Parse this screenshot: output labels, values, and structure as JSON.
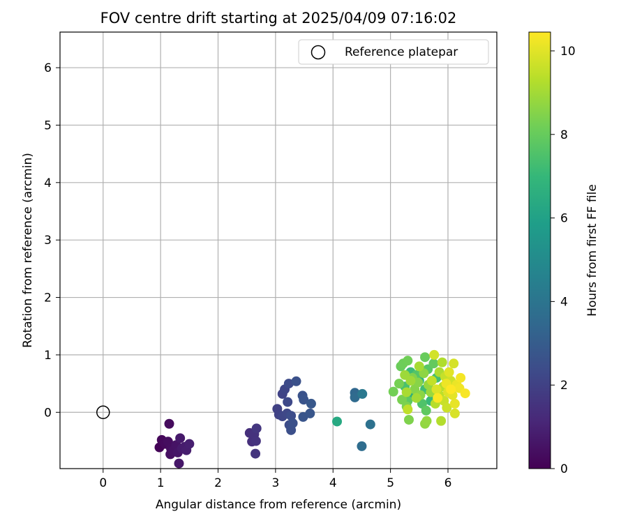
{
  "chart_data": {
    "type": "scatter",
    "title": "FOV centre drift starting at 2025/04/09 07:16:02",
    "xlabel": "Angular distance from reference (arcmin)",
    "ylabel": "Rotation from reference (arcmin)",
    "xlim": [
      -0.75,
      6.85
    ],
    "ylim": [
      -0.98,
      6.62
    ],
    "xticks": [
      0,
      1,
      2,
      3,
      4,
      5,
      6
    ],
    "yticks": [
      0,
      1,
      2,
      3,
      4,
      5,
      6
    ],
    "grid": true,
    "legend": {
      "placement": "top-right",
      "entries": [
        "Reference platepar"
      ]
    },
    "reference_point": {
      "label": "Reference platepar",
      "x": 0,
      "y": 0,
      "marker": "open-circle"
    },
    "colorbar": {
      "label": "Hours from first FF file",
      "range": [
        0,
        10.45
      ],
      "ticks": [
        0,
        2,
        4,
        6,
        8,
        10
      ],
      "colormap": "viridis"
    },
    "points": [
      {
        "x": 0.98,
        "y": -0.61,
        "c": 0.1
      },
      {
        "x": 1.02,
        "y": -0.48,
        "c": 0.2
      },
      {
        "x": 1.08,
        "y": -0.55,
        "c": 0.25
      },
      {
        "x": 1.15,
        "y": -0.2,
        "c": 0.3
      },
      {
        "x": 1.13,
        "y": -0.51,
        "c": 0.35
      },
      {
        "x": 1.18,
        "y": -0.63,
        "c": 0.4
      },
      {
        "x": 1.17,
        "y": -0.73,
        "c": 0.45
      },
      {
        "x": 1.22,
        "y": -0.67,
        "c": 0.5
      },
      {
        "x": 1.27,
        "y": -0.57,
        "c": 0.55
      },
      {
        "x": 1.3,
        "y": -0.7,
        "c": 0.6
      },
      {
        "x": 1.32,
        "y": -0.89,
        "c": 0.65
      },
      {
        "x": 1.34,
        "y": -0.45,
        "c": 0.7
      },
      {
        "x": 1.37,
        "y": -0.63,
        "c": 0.75
      },
      {
        "x": 1.42,
        "y": -0.6,
        "c": 0.8
      },
      {
        "x": 1.45,
        "y": -0.66,
        "c": 0.85
      },
      {
        "x": 1.5,
        "y": -0.55,
        "c": 0.9
      },
      {
        "x": 2.55,
        "y": -0.36,
        "c": 1.4
      },
      {
        "x": 2.59,
        "y": -0.51,
        "c": 1.45
      },
      {
        "x": 2.63,
        "y": -0.38,
        "c": 1.5
      },
      {
        "x": 2.66,
        "y": -0.5,
        "c": 1.55
      },
      {
        "x": 2.65,
        "y": -0.72,
        "c": 1.6
      },
      {
        "x": 2.67,
        "y": -0.28,
        "c": 1.65
      },
      {
        "x": 3.03,
        "y": 0.06,
        "c": 2.0
      },
      {
        "x": 3.06,
        "y": -0.04,
        "c": 2.05
      },
      {
        "x": 3.12,
        "y": 0.32,
        "c": 2.1
      },
      {
        "x": 3.16,
        "y": 0.4,
        "c": 2.15
      },
      {
        "x": 3.12,
        "y": -0.07,
        "c": 2.2
      },
      {
        "x": 3.2,
        "y": -0.02,
        "c": 2.25
      },
      {
        "x": 3.21,
        "y": 0.18,
        "c": 2.3
      },
      {
        "x": 3.23,
        "y": 0.5,
        "c": 2.35
      },
      {
        "x": 3.24,
        "y": -0.22,
        "c": 2.4
      },
      {
        "x": 3.27,
        "y": -0.06,
        "c": 2.45
      },
      {
        "x": 3.27,
        "y": -0.31,
        "c": 2.5
      },
      {
        "x": 3.3,
        "y": -0.19,
        "c": 2.55
      },
      {
        "x": 3.36,
        "y": 0.54,
        "c": 2.6
      },
      {
        "x": 3.47,
        "y": 0.29,
        "c": 2.65
      },
      {
        "x": 3.49,
        "y": 0.22,
        "c": 2.7
      },
      {
        "x": 3.48,
        "y": -0.08,
        "c": 2.75
      },
      {
        "x": 3.6,
        "y": -0.02,
        "c": 2.8
      },
      {
        "x": 3.62,
        "y": 0.15,
        "c": 2.85
      },
      {
        "x": 4.38,
        "y": 0.34,
        "c": 3.5
      },
      {
        "x": 4.38,
        "y": 0.26,
        "c": 3.6
      },
      {
        "x": 4.5,
        "y": -0.59,
        "c": 3.7
      },
      {
        "x": 4.51,
        "y": 0.32,
        "c": 4.2
      },
      {
        "x": 4.65,
        "y": -0.21,
        "c": 3.9
      },
      {
        "x": 4.07,
        "y": -0.16,
        "c": 6.3
      },
      {
        "x": 5.4,
        "y": 0.3,
        "c": 6.5
      },
      {
        "x": 5.5,
        "y": 0.55,
        "c": 6.8
      },
      {
        "x": 5.7,
        "y": 0.2,
        "c": 7.0
      },
      {
        "x": 5.35,
        "y": 0.7,
        "c": 7.1
      },
      {
        "x": 5.6,
        "y": 0.4,
        "c": 7.2
      },
      {
        "x": 5.8,
        "y": 0.6,
        "c": 7.3
      },
      {
        "x": 5.25,
        "y": 0.45,
        "c": 7.4
      },
      {
        "x": 5.55,
        "y": 0.15,
        "c": 7.5
      },
      {
        "x": 5.45,
        "y": 0.65,
        "c": 7.6
      },
      {
        "x": 5.65,
        "y": 0.75,
        "c": 7.7
      },
      {
        "x": 5.3,
        "y": 0.2,
        "c": 7.8
      },
      {
        "x": 5.62,
        "y": 0.03,
        "c": 7.85
      },
      {
        "x": 5.75,
        "y": 0.85,
        "c": 7.9
      },
      {
        "x": 5.6,
        "y": 0.96,
        "c": 8.0
      },
      {
        "x": 5.18,
        "y": 0.8,
        "c": 8.05
      },
      {
        "x": 5.22,
        "y": 0.85,
        "c": 8.1
      },
      {
        "x": 5.3,
        "y": 0.9,
        "c": 8.15
      },
      {
        "x": 5.05,
        "y": 0.36,
        "c": 8.2
      },
      {
        "x": 5.15,
        "y": 0.5,
        "c": 8.25
      },
      {
        "x": 5.2,
        "y": 0.22,
        "c": 8.3
      },
      {
        "x": 5.28,
        "y": 0.1,
        "c": 8.35
      },
      {
        "x": 5.32,
        "y": -0.13,
        "c": 8.4
      },
      {
        "x": 5.38,
        "y": 0.6,
        "c": 8.45
      },
      {
        "x": 5.42,
        "y": 0.4,
        "c": 8.5
      },
      {
        "x": 5.48,
        "y": 0.52,
        "c": 8.55
      },
      {
        "x": 5.52,
        "y": 0.3,
        "c": 8.6
      },
      {
        "x": 5.58,
        "y": 0.68,
        "c": 8.65
      },
      {
        "x": 5.6,
        "y": -0.2,
        "c": 8.7
      },
      {
        "x": 5.63,
        "y": -0.15,
        "c": 8.75
      },
      {
        "x": 5.66,
        "y": 0.48,
        "c": 8.8
      },
      {
        "x": 5.7,
        "y": 0.35,
        "c": 8.85
      },
      {
        "x": 5.25,
        "y": 0.65,
        "c": 8.9
      },
      {
        "x": 5.35,
        "y": 0.55,
        "c": 8.95
      },
      {
        "x": 5.45,
        "y": 0.25,
        "c": 9.0
      },
      {
        "x": 5.5,
        "y": 0.8,
        "c": 9.05
      },
      {
        "x": 5.28,
        "y": 0.35,
        "c": 9.1
      },
      {
        "x": 5.85,
        "y": 0.7,
        "c": 9.15
      },
      {
        "x": 5.9,
        "y": 0.87,
        "c": 9.2
      },
      {
        "x": 5.88,
        "y": -0.15,
        "c": 9.25
      },
      {
        "x": 5.78,
        "y": 0.15,
        "c": 9.3
      },
      {
        "x": 5.92,
        "y": 0.45,
        "c": 9.35
      },
      {
        "x": 5.85,
        "y": 0.3,
        "c": 9.4
      },
      {
        "x": 5.3,
        "y": 0.05,
        "c": 9.45
      },
      {
        "x": 5.72,
        "y": 0.55,
        "c": 9.5
      },
      {
        "x": 5.95,
        "y": 0.62,
        "c": 9.55
      },
      {
        "x": 5.93,
        "y": 0.2,
        "c": 9.6
      },
      {
        "x": 5.98,
        "y": 0.08,
        "c": 9.65
      },
      {
        "x": 6.05,
        "y": 0.55,
        "c": 9.7
      },
      {
        "x": 5.76,
        "y": 1.0,
        "c": 9.75
      },
      {
        "x": 6.1,
        "y": 0.85,
        "c": 9.8
      },
      {
        "x": 6.12,
        "y": -0.02,
        "c": 9.85
      },
      {
        "x": 5.8,
        "y": 0.4,
        "c": 9.9
      },
      {
        "x": 6.0,
        "y": 0.35,
        "c": 9.95
      },
      {
        "x": 6.02,
        "y": 0.7,
        "c": 10.0
      },
      {
        "x": 6.08,
        "y": 0.3,
        "c": 10.05
      },
      {
        "x": 6.12,
        "y": 0.15,
        "c": 10.1
      },
      {
        "x": 6.15,
        "y": 0.48,
        "c": 10.15
      },
      {
        "x": 5.97,
        "y": 0.5,
        "c": 10.2
      },
      {
        "x": 6.2,
        "y": 0.42,
        "c": 10.25
      },
      {
        "x": 6.22,
        "y": 0.6,
        "c": 10.3
      },
      {
        "x": 6.3,
        "y": 0.33,
        "c": 10.35
      },
      {
        "x": 5.82,
        "y": 0.25,
        "c": 10.4
      },
      {
        "x": 6.05,
        "y": 0.4,
        "c": 10.45
      }
    ]
  }
}
